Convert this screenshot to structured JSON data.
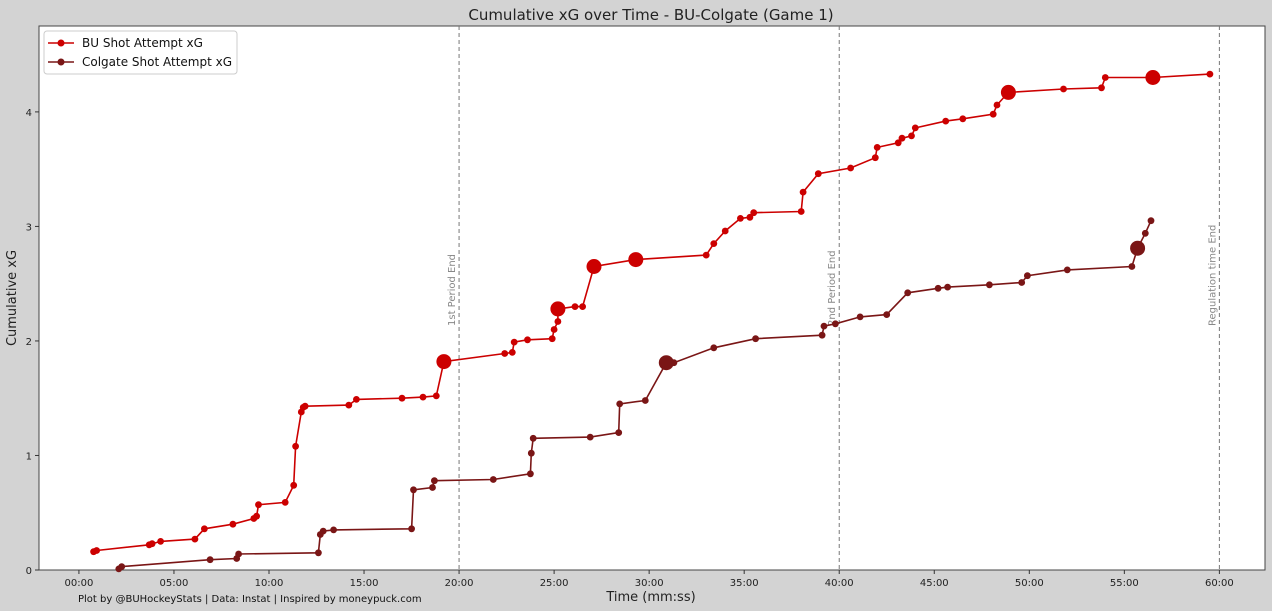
{
  "chart_data": {
    "type": "line",
    "title": "Cumulative xG over Time - BU-Colgate (Game 1)",
    "xlabel": "Time (mm:ss)",
    "ylabel": "Cumulative xG",
    "xlim": [
      -2.1,
      62.4
    ],
    "ylim": [
      0,
      4.75
    ],
    "xticks": [
      0,
      5,
      10,
      15,
      20,
      25,
      30,
      35,
      40,
      45,
      50,
      55,
      60
    ],
    "xtick_labels": [
      "00:00",
      "05:00",
      "10:00",
      "15:00",
      "20:00",
      "25:00",
      "30:00",
      "35:00",
      "40:00",
      "45:00",
      "50:00",
      "55:00",
      "60:00"
    ],
    "yticks": [
      0,
      1,
      2,
      3,
      4
    ],
    "ytick_labels": [
      "0",
      "1",
      "2",
      "3",
      "4"
    ],
    "grid": false,
    "legend_position": "top-left",
    "vlines": [
      {
        "x": 20,
        "label": "1st Period End"
      },
      {
        "x": 40,
        "label": "2nd Period End"
      },
      {
        "x": 60,
        "label": "Regulation time End"
      }
    ],
    "series": [
      {
        "name": "BU Shot Attempt xG",
        "color": "#cc0000",
        "points": [
          [
            0.77,
            0.16
          ],
          [
            0.93,
            0.17
          ],
          [
            3.7,
            0.22
          ],
          [
            3.85,
            0.23
          ],
          [
            4.3,
            0.25
          ],
          [
            6.1,
            0.27
          ],
          [
            6.6,
            0.36
          ],
          [
            8.1,
            0.4
          ],
          [
            9.2,
            0.45
          ],
          [
            9.35,
            0.47
          ],
          [
            9.45,
            0.57
          ],
          [
            10.85,
            0.59
          ],
          [
            11.3,
            0.74
          ],
          [
            11.4,
            1.08
          ],
          [
            11.7,
            1.38
          ],
          [
            11.8,
            1.42
          ],
          [
            11.9,
            1.43
          ],
          [
            14.2,
            1.44
          ],
          [
            14.6,
            1.49
          ],
          [
            17.0,
            1.5
          ],
          [
            18.1,
            1.51
          ],
          [
            18.8,
            1.52
          ],
          [
            19.2,
            1.82,
            "big"
          ],
          [
            22.4,
            1.89
          ],
          [
            22.8,
            1.9
          ],
          [
            22.9,
            1.99
          ],
          [
            23.6,
            2.01
          ],
          [
            24.9,
            2.02
          ],
          [
            25.0,
            2.1
          ],
          [
            25.2,
            2.17
          ],
          [
            25.2,
            2.28,
            "big"
          ],
          [
            26.1,
            2.3
          ],
          [
            26.5,
            2.3
          ],
          [
            27.1,
            2.65,
            "big"
          ],
          [
            29.3,
            2.71,
            "big"
          ],
          [
            33.0,
            2.75
          ],
          [
            33.4,
            2.85
          ],
          [
            34.0,
            2.96
          ],
          [
            34.8,
            3.07
          ],
          [
            35.3,
            3.08
          ],
          [
            35.5,
            3.12
          ],
          [
            38.0,
            3.13
          ],
          [
            38.1,
            3.3
          ],
          [
            38.9,
            3.46
          ],
          [
            40.6,
            3.51
          ],
          [
            41.9,
            3.6
          ],
          [
            42.0,
            3.69
          ],
          [
            43.1,
            3.73
          ],
          [
            43.3,
            3.77
          ],
          [
            43.8,
            3.79
          ],
          [
            44.0,
            3.86
          ],
          [
            45.6,
            3.92
          ],
          [
            46.5,
            3.94
          ],
          [
            48.1,
            3.98
          ],
          [
            48.3,
            4.06
          ],
          [
            48.9,
            4.17,
            "big"
          ],
          [
            51.8,
            4.2
          ],
          [
            53.8,
            4.21
          ],
          [
            54.0,
            4.3
          ],
          [
            56.5,
            4.3,
            "big"
          ],
          [
            59.5,
            4.33
          ]
        ]
      },
      {
        "name": "Colgate Shot Attempt xG",
        "color": "#7a1616",
        "points": [
          [
            2.1,
            0.01
          ],
          [
            2.25,
            0.03
          ],
          [
            6.9,
            0.09
          ],
          [
            8.3,
            0.1
          ],
          [
            8.4,
            0.14
          ],
          [
            12.6,
            0.15
          ],
          [
            12.7,
            0.31
          ],
          [
            12.85,
            0.34
          ],
          [
            13.4,
            0.35
          ],
          [
            17.5,
            0.36
          ],
          [
            17.6,
            0.7
          ],
          [
            18.6,
            0.72
          ],
          [
            18.7,
            0.78
          ],
          [
            21.8,
            0.79
          ],
          [
            23.75,
            0.84
          ],
          [
            23.8,
            1.02
          ],
          [
            23.9,
            1.15
          ],
          [
            26.9,
            1.16
          ],
          [
            28.4,
            1.2
          ],
          [
            28.45,
            1.45
          ],
          [
            29.8,
            1.48
          ],
          [
            30.9,
            1.81,
            "big"
          ],
          [
            31.3,
            1.81
          ],
          [
            33.4,
            1.94
          ],
          [
            35.6,
            2.02
          ],
          [
            39.1,
            2.05
          ],
          [
            39.2,
            2.13
          ],
          [
            39.8,
            2.15
          ],
          [
            41.1,
            2.21
          ],
          [
            42.5,
            2.23
          ],
          [
            43.6,
            2.42
          ],
          [
            45.2,
            2.46
          ],
          [
            45.7,
            2.47
          ],
          [
            47.9,
            2.49
          ],
          [
            49.6,
            2.51
          ],
          [
            49.9,
            2.57
          ],
          [
            52.0,
            2.62
          ],
          [
            55.4,
            2.65
          ],
          [
            55.7,
            2.81,
            "big"
          ],
          [
            56.1,
            2.94
          ],
          [
            56.4,
            3.05
          ]
        ]
      }
    ]
  },
  "credit": "Plot by @BUHockeyStats | Data: Instat | Inspired by moneypuck.com"
}
